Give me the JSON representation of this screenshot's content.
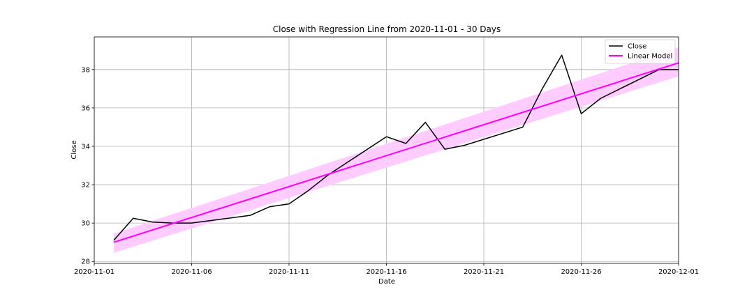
{
  "chart_data": {
    "type": "line",
    "title": "Close with Regression Line from 2020-11-01  - 30 Days",
    "xlabel": "Date",
    "ylabel": "Close",
    "xlim": [
      "2020-11-01",
      "2020-12-01"
    ],
    "ylim": [
      27.9,
      39.7
    ],
    "x_ticks": [
      "2020-11-01",
      "2020-11-06",
      "2020-11-11",
      "2020-11-16",
      "2020-11-21",
      "2020-11-26",
      "2020-12-01"
    ],
    "y_ticks": [
      28,
      30,
      32,
      34,
      36,
      38
    ],
    "grid": true,
    "legend_position": "top-right",
    "series": [
      {
        "name": "Close",
        "color": "#000000",
        "x": [
          "2020-11-02",
          "2020-11-03",
          "2020-11-04",
          "2020-11-05",
          "2020-11-06",
          "2020-11-09",
          "2020-11-10",
          "2020-11-11",
          "2020-11-12",
          "2020-11-13",
          "2020-11-16",
          "2020-11-17",
          "2020-11-18",
          "2020-11-19",
          "2020-11-20",
          "2020-11-23",
          "2020-11-24",
          "2020-11-25",
          "2020-11-26",
          "2020-11-27",
          "2020-11-30",
          "2020-12-01"
        ],
        "y": [
          29.1,
          30.25,
          30.05,
          30.0,
          30.0,
          30.4,
          30.85,
          31.0,
          31.7,
          32.5,
          34.5,
          34.15,
          35.25,
          33.85,
          34.05,
          35.0,
          37.0,
          38.75,
          35.7,
          36.5,
          38.0,
          38.0
        ]
      },
      {
        "name": "Linear Model",
        "color": "#ff00ff",
        "x": [
          "2020-11-02",
          "2020-12-01"
        ],
        "y": [
          29.0,
          38.35
        ],
        "ci_lower": [
          28.45,
          37.65
        ],
        "ci_upper": [
          29.45,
          39.15
        ],
        "ci_color": "#ffccff"
      }
    ]
  }
}
